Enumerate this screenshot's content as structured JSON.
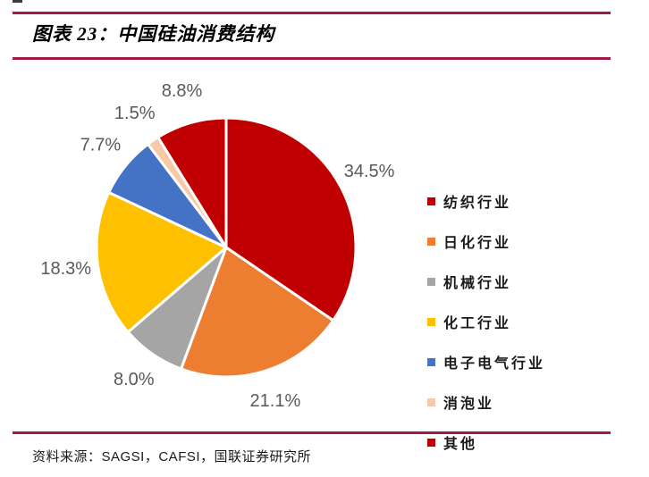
{
  "header": {
    "title": "图表 23：中国硅油消费结构"
  },
  "footer": {
    "source": "资料来源：SAGSI，CAFSI，国联证券研究所"
  },
  "theme": {
    "accent_rule_color": "#A01B41",
    "percent_label_color": "#595959"
  },
  "chart_data": {
    "type": "pie",
    "title": "中国硅油消费结构",
    "categories": [
      "纺织行业",
      "日化行业",
      "机械行业",
      "化工行业",
      "电子电气行业",
      "消泡业",
      "其他"
    ],
    "values": [
      34.5,
      21.1,
      8.0,
      18.3,
      7.7,
      1.5,
      8.8
    ],
    "data_labels": [
      "34.5%",
      "21.1%",
      "8.0%",
      "18.3%",
      "7.7%",
      "1.5%",
      "8.8%"
    ],
    "colors": [
      "#C00000",
      "#ED7D31",
      "#A5A5A5",
      "#FFC000",
      "#4472C4",
      "#F6C9A8",
      "#C00000"
    ],
    "slice_names": [
      "textile",
      "daily-chemical",
      "machinery",
      "chemical",
      "electronics",
      "defoaming",
      "other"
    ],
    "start_angle_deg": 0,
    "direction": "clockwise",
    "legend_position": "right",
    "grid": false
  }
}
